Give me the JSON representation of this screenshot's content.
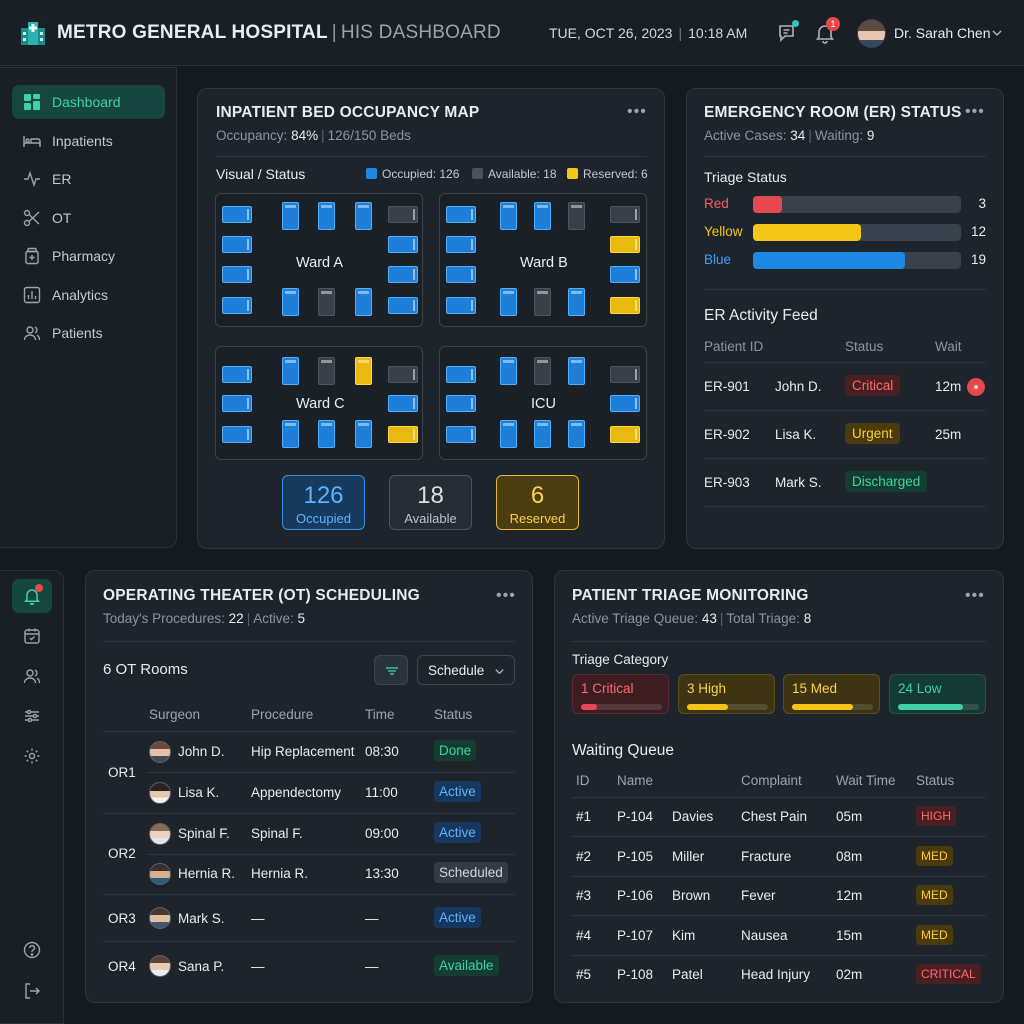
{
  "header": {
    "brand": "METRO GENERAL HOSPITAL",
    "divider": "|",
    "subtitle": "HIS DASHBOARD",
    "date": "TUE, OCT 26, 2023",
    "time": "10:18 AM",
    "notif_count": "1",
    "user_name": "Dr. Sarah Chen"
  },
  "sidebar": {
    "items": [
      {
        "label": "Dashboard",
        "icon": "grid-icon"
      },
      {
        "label": "Inpatients",
        "icon": "bed-icon"
      },
      {
        "label": "ER",
        "icon": "pulse-icon"
      },
      {
        "label": "OT",
        "icon": "scissors-icon"
      },
      {
        "label": "Pharmacy",
        "icon": "pill-bottle-icon"
      },
      {
        "label": "Analytics",
        "icon": "bar-chart-icon"
      },
      {
        "label": "Patients",
        "icon": "users-icon"
      }
    ]
  },
  "beds": {
    "title": "INPATIENT BED OCCUPANCY MAP",
    "sub_label": "Occupancy:",
    "sub_pct": "84%",
    "sub_beds": "126/150 Beds",
    "visual_status": "Visual / Status",
    "legend": {
      "occupied": "Occupied: 126",
      "available": "Available: 18",
      "reserved": "Reserved: 6"
    },
    "wards": [
      "Ward A",
      "Ward B",
      "Ward C",
      "ICU"
    ],
    "totals": {
      "occupied_num": "126",
      "occupied_lbl": "Occupied",
      "available_num": "18",
      "available_lbl": "Available",
      "reserved_num": "6",
      "reserved_lbl": "Reserved"
    },
    "colors": {
      "occupied": "#1e7fd9",
      "available": "#3a4049",
      "reserved": "#e8b90f"
    }
  },
  "er": {
    "title": "EMERGENCY ROOM (ER) STATUS",
    "sub_active_label": "Active Cases:",
    "sub_active": "34",
    "sub_waiting_label": "Waiting:",
    "sub_waiting": "9",
    "triage_title": "Triage Status",
    "triage": [
      {
        "name": "Red",
        "value": "3",
        "fraction": 0.14,
        "color": "#e5484d"
      },
      {
        "name": "Yellow",
        "value": "12",
        "fraction": 0.52,
        "color": "#f5c518"
      },
      {
        "name": "Blue",
        "value": "19",
        "fraction": 0.73,
        "color": "#1e88e5"
      }
    ],
    "feed_title": "ER Activity Feed",
    "feed_cols": {
      "id": "Patient ID",
      "status": "Status",
      "wait": "Wait"
    },
    "feed": [
      {
        "id": "ER-901",
        "name": "John D.",
        "status": "Critical",
        "wait": "12m"
      },
      {
        "id": "ER-902",
        "name": "Lisa K.",
        "status": "Urgent",
        "wait": "25m"
      },
      {
        "id": "ER-903",
        "name": "Mark S.",
        "status": "Discharged",
        "wait": ""
      }
    ]
  },
  "ot": {
    "title": "OPERATING THEATER (OT) SCHEDULING",
    "sub_label": "Today's Procedures:",
    "sub_total": "22",
    "sub_active_label": "Active:",
    "sub_active": "5",
    "rooms_label": "6 OT Rooms",
    "select_value": "Schedule",
    "cols": {
      "surgeon": "Surgeon",
      "procedure": "Procedure",
      "time": "Time",
      "status": "Status"
    },
    "rooms": [
      "OR1",
      "OR2",
      "OR3",
      "OR4"
    ],
    "rows": [
      {
        "surgeon": "John D.",
        "procedure": "Hip Replacement",
        "time": "08:30",
        "status": "Done"
      },
      {
        "surgeon": "Lisa K.",
        "procedure": "Appendectomy",
        "time": "11:00",
        "status": "Active"
      },
      {
        "surgeon": "Spinal F.",
        "procedure": "Spinal F.",
        "time": "09:00",
        "status": "Active"
      },
      {
        "surgeon": "Hernia R.",
        "procedure": "Hernia R.",
        "time": "13:30",
        "status": "Scheduled"
      },
      {
        "surgeon": "Mark S.",
        "procedure": "—",
        "time": "—",
        "status": "Active"
      },
      {
        "surgeon": "Sana P.",
        "procedure": "—",
        "time": "—",
        "status": "Available"
      }
    ]
  },
  "triage": {
    "title": "PATIENT TRIAGE MONITORING",
    "sub_queue_label": "Active Triage Queue:",
    "sub_queue": "43",
    "sub_total_label": "Total Triage:",
    "sub_total": "8",
    "category_title": "Triage Category",
    "categories": [
      {
        "label": "1 Critical",
        "fraction": 0.2
      },
      {
        "label": "3 High",
        "fraction": 0.5
      },
      {
        "label": "15 Med",
        "fraction": 0.75
      },
      {
        "label": "24 Low",
        "fraction": 0.8
      }
    ],
    "queue_title": "Waiting Queue",
    "cols": {
      "id": "ID",
      "name": "Name",
      "complaint": "Complaint",
      "wait": "Wait Time",
      "status": "Status"
    },
    "rows": [
      {
        "id": "#1",
        "pid": "P-104",
        "name": "Davies",
        "complaint": "Chest Pain",
        "wait": "05m",
        "status": "HIGH"
      },
      {
        "id": "#2",
        "pid": "P-105",
        "name": "Miller",
        "complaint": "Fracture",
        "wait": "08m",
        "status": "MED"
      },
      {
        "id": "#3",
        "pid": "P-106",
        "name": "Brown",
        "complaint": "Fever",
        "wait": "12m",
        "status": "MED"
      },
      {
        "id": "#4",
        "pid": "P-107",
        "name": "Kim",
        "complaint": "Nausea",
        "wait": "15m",
        "status": "MED"
      },
      {
        "id": "#5",
        "pid": "P-108",
        "name": "Patel",
        "complaint": "Head Injury",
        "wait": "02m",
        "status": "CRITICAL"
      }
    ]
  }
}
